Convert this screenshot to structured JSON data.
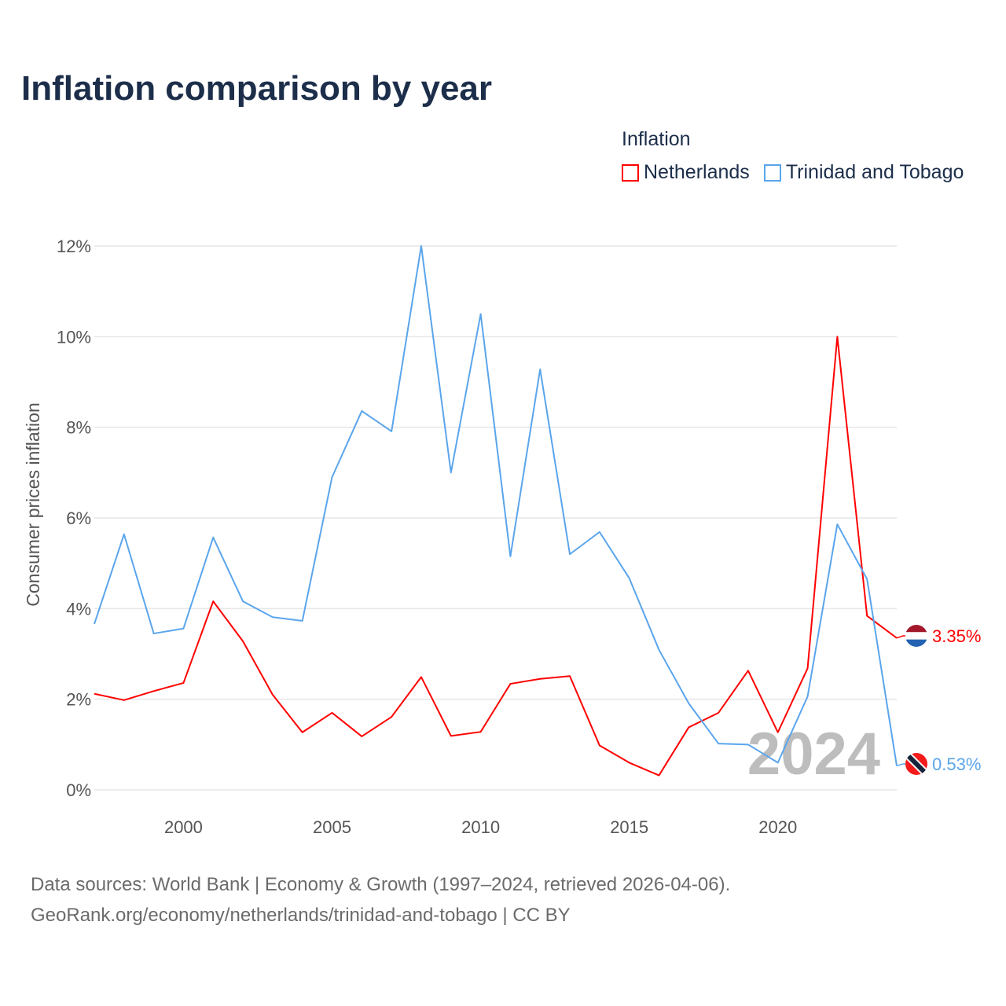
{
  "title": "Inflation comparison by year",
  "legend": {
    "title": "Inflation",
    "items": [
      {
        "name": "Netherlands",
        "color": "#ff0000"
      },
      {
        "name": "Trinidad and Tobago",
        "color": "#5aa5ec"
      }
    ]
  },
  "chart_data": {
    "type": "line",
    "title": "Inflation comparison by year",
    "xlabel": "",
    "ylabel": "Consumer prices inflation",
    "x": [
      1997,
      1998,
      1999,
      2000,
      2001,
      2002,
      2003,
      2004,
      2005,
      2006,
      2007,
      2008,
      2009,
      2010,
      2011,
      2012,
      2013,
      2014,
      2015,
      2016,
      2017,
      2018,
      2019,
      2020,
      2021,
      2022,
      2023,
      2024
    ],
    "xlim": [
      1997,
      2024
    ],
    "ylim": [
      0,
      12
    ],
    "x_ticks": [
      "2000",
      "2005",
      "2010",
      "2015",
      "2020"
    ],
    "x_tick_values": [
      2000,
      2005,
      2010,
      2015,
      2020
    ],
    "y_ticks": [
      "0%",
      "2%",
      "4%",
      "6%",
      "8%",
      "10%",
      "12%"
    ],
    "y_tick_values": [
      0,
      2,
      4,
      6,
      8,
      10,
      12
    ],
    "grid": true,
    "legend_position": "top-right",
    "watermark_year": "2024",
    "series": [
      {
        "name": "Netherlands",
        "color": "#ff0000",
        "end_label": "3.35%",
        "values": [
          2.12,
          1.98,
          2.18,
          2.36,
          4.16,
          3.28,
          2.1,
          1.27,
          1.7,
          1.18,
          1.61,
          2.49,
          1.19,
          1.28,
          2.34,
          2.45,
          2.51,
          0.98,
          0.6,
          0.32,
          1.38,
          1.7,
          2.63,
          1.27,
          2.68,
          10.0,
          3.84,
          3.35
        ]
      },
      {
        "name": "Trinidad and Tobago",
        "color": "#5aa5ec",
        "end_label": "0.53%",
        "values": [
          3.66,
          5.64,
          3.45,
          3.56,
          5.57,
          4.16,
          3.81,
          3.73,
          6.9,
          8.36,
          7.91,
          12.0,
          7.0,
          10.5,
          5.15,
          9.28,
          5.2,
          5.69,
          4.67,
          3.09,
          1.91,
          1.02,
          1.0,
          0.6,
          2.06,
          5.86,
          4.65,
          0.53
        ]
      }
    ]
  },
  "footer": {
    "line1": "Data sources: World Bank | Economy & Growth (1997–2024, retrieved 2026-04-06).",
    "line2": "GeoRank.org/economy/netherlands/trinidad-and-tobago | CC BY"
  }
}
